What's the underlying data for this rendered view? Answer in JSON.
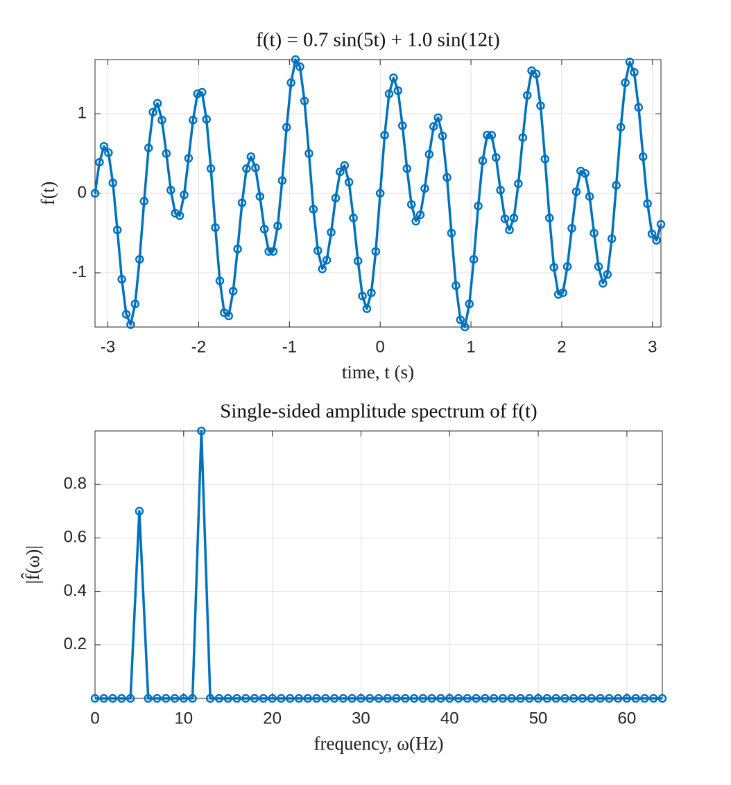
{
  "chart_data": [
    {
      "type": "line",
      "title": "f(t) = 0.7 sin(5t) + 1.0 sin(12t)",
      "xlabel": "time, t (s)",
      "ylabel": "f(t)",
      "x": [
        -3.142,
        -3.093,
        -3.043,
        -2.994,
        -2.945,
        -2.896,
        -2.847,
        -2.798,
        -2.749,
        -2.7,
        -2.651,
        -2.601,
        -2.552,
        -2.503,
        -2.454,
        -2.405,
        -2.356,
        -2.307,
        -2.258,
        -2.209,
        -2.16,
        -2.111,
        -2.062,
        -2.013,
        -1.963,
        -1.914,
        -1.865,
        -1.816,
        -1.767,
        -1.718,
        -1.669,
        -1.62,
        -1.571,
        -1.522,
        -1.473,
        -1.424,
        -1.374,
        -1.325,
        -1.276,
        -1.227,
        -1.178,
        -1.129,
        -1.08,
        -1.031,
        -0.982,
        -0.933,
        -0.884,
        -0.834,
        -0.785,
        -0.736,
        -0.687,
        -0.638,
        -0.589,
        -0.54,
        -0.491,
        -0.442,
        -0.393,
        -0.344,
        -0.295,
        -0.245,
        -0.196,
        -0.147,
        -0.098,
        -0.049,
        0,
        0.049,
        0.098,
        0.147,
        0.196,
        0.245,
        0.295,
        0.344,
        0.393,
        0.442,
        0.491,
        0.54,
        0.589,
        0.638,
        0.687,
        0.736,
        0.785,
        0.834,
        0.884,
        0.933,
        0.982,
        1.031,
        1.08,
        1.129,
        1.178,
        1.227,
        1.276,
        1.325,
        1.374,
        1.424,
        1.473,
        1.522,
        1.571,
        1.62,
        1.669,
        1.718,
        1.767,
        1.816,
        1.865,
        1.914,
        1.963,
        2.013,
        2.062,
        2.111,
        2.16,
        2.209,
        2.258,
        2.307,
        2.356,
        2.405,
        2.454,
        2.503,
        2.552,
        2.601,
        2.651,
        2.7,
        2.749,
        2.798,
        2.847,
        2.896,
        2.945,
        2.994,
        3.043,
        3.093
      ],
      "series": [
        {
          "color": "#0072bd",
          "values": [
            0,
            0.39,
            0.59,
            0.51,
            0.13,
            -0.46,
            -1.08,
            -1.52,
            -1.65,
            -1.39,
            -0.83,
            -0.1,
            0.57,
            1.02,
            1.13,
            0.92,
            0.5,
            0.04,
            -0.25,
            -0.28,
            -0.02,
            0.44,
            0.92,
            1.25,
            1.27,
            0.93,
            0.31,
            -0.43,
            -1.1,
            -1.5,
            -1.54,
            -1.23,
            -0.7,
            -0.12,
            0.31,
            0.46,
            0.32,
            -0.04,
            -0.45,
            -0.73,
            -0.73,
            -0.41,
            0.16,
            0.83,
            1.39,
            1.68,
            1.59,
            1.16,
            0.5,
            -0.2,
            -0.72,
            -0.95,
            -0.84,
            -0.49,
            -0.06,
            0.27,
            0.35,
            0.14,
            -0.31,
            -0.85,
            -1.29,
            -1.45,
            -1.25,
            -0.73,
            0,
            0.73,
            1.25,
            1.45,
            1.29,
            0.85,
            0.31,
            -0.14,
            -0.35,
            -0.27,
            0.06,
            0.49,
            0.84,
            0.95,
            0.72,
            0.2,
            -0.5,
            -1.16,
            -1.59,
            -1.68,
            -1.39,
            -0.83,
            -0.16,
            0.41,
            0.73,
            0.73,
            0.45,
            0.04,
            -0.32,
            -0.46,
            -0.31,
            0.12,
            0.7,
            1.23,
            1.54,
            1.5,
            1.1,
            0.43,
            -0.31,
            -0.93,
            -1.27,
            -1.25,
            -0.92,
            -0.44,
            0.02,
            0.28,
            0.25,
            -0.04,
            -0.5,
            -0.92,
            -1.13,
            -1.02,
            -0.57,
            0.1,
            0.83,
            1.39,
            1.65,
            1.52,
            1.08,
            0.46,
            -0.13,
            -0.51,
            -0.59,
            -0.39
          ]
        }
      ],
      "marker": "o",
      "xlim": [
        -3.142,
        3.093
      ],
      "ylim": [
        -1.68,
        1.68
      ],
      "xticks": [
        -3,
        -2,
        -1,
        0,
        1,
        2,
        3
      ],
      "yticks": [
        -1,
        0,
        1
      ],
      "grid": true
    },
    {
      "type": "line",
      "title": "Single-sided amplitude spectrum of f(t)",
      "xlabel": "frequency, ω(Hz)",
      "ylabel": "|f̂(ω)|",
      "x": [
        0,
        1,
        2,
        3,
        4,
        5,
        6,
        7,
        8,
        9,
        10,
        11,
        12,
        13,
        14,
        15,
        16,
        17,
        18,
        19,
        20,
        21,
        22,
        23,
        24,
        25,
        26,
        27,
        28,
        29,
        30,
        31,
        32,
        33,
        34,
        35,
        36,
        37,
        38,
        39,
        40,
        41,
        42,
        43,
        44,
        45,
        46,
        47,
        48,
        49,
        50,
        51,
        52,
        53,
        54,
        55,
        56,
        57,
        58,
        59,
        60,
        61,
        62,
        63,
        64
      ],
      "series": [
        {
          "color": "#0072bd",
          "values": [
            0,
            0,
            0,
            0,
            0,
            0.7,
            0,
            0,
            0,
            0,
            0,
            0,
            1.0,
            0,
            0,
            0,
            0,
            0,
            0,
            0,
            0,
            0,
            0,
            0,
            0,
            0,
            0,
            0,
            0,
            0,
            0,
            0,
            0,
            0,
            0,
            0,
            0,
            0,
            0,
            0,
            0,
            0,
            0,
            0,
            0,
            0,
            0,
            0,
            0,
            0,
            0,
            0,
            0,
            0,
            0,
            0,
            0,
            0,
            0,
            0,
            0,
            0,
            0,
            0,
            0
          ]
        }
      ],
      "marker": "o",
      "xlim": [
        0,
        64
      ],
      "ylim": [
        0,
        1
      ],
      "xticks": [
        0,
        10,
        20,
        30,
        40,
        50,
        60
      ],
      "yticks": [
        0.2,
        0.4,
        0.6,
        0.8
      ],
      "grid": true
    }
  ]
}
